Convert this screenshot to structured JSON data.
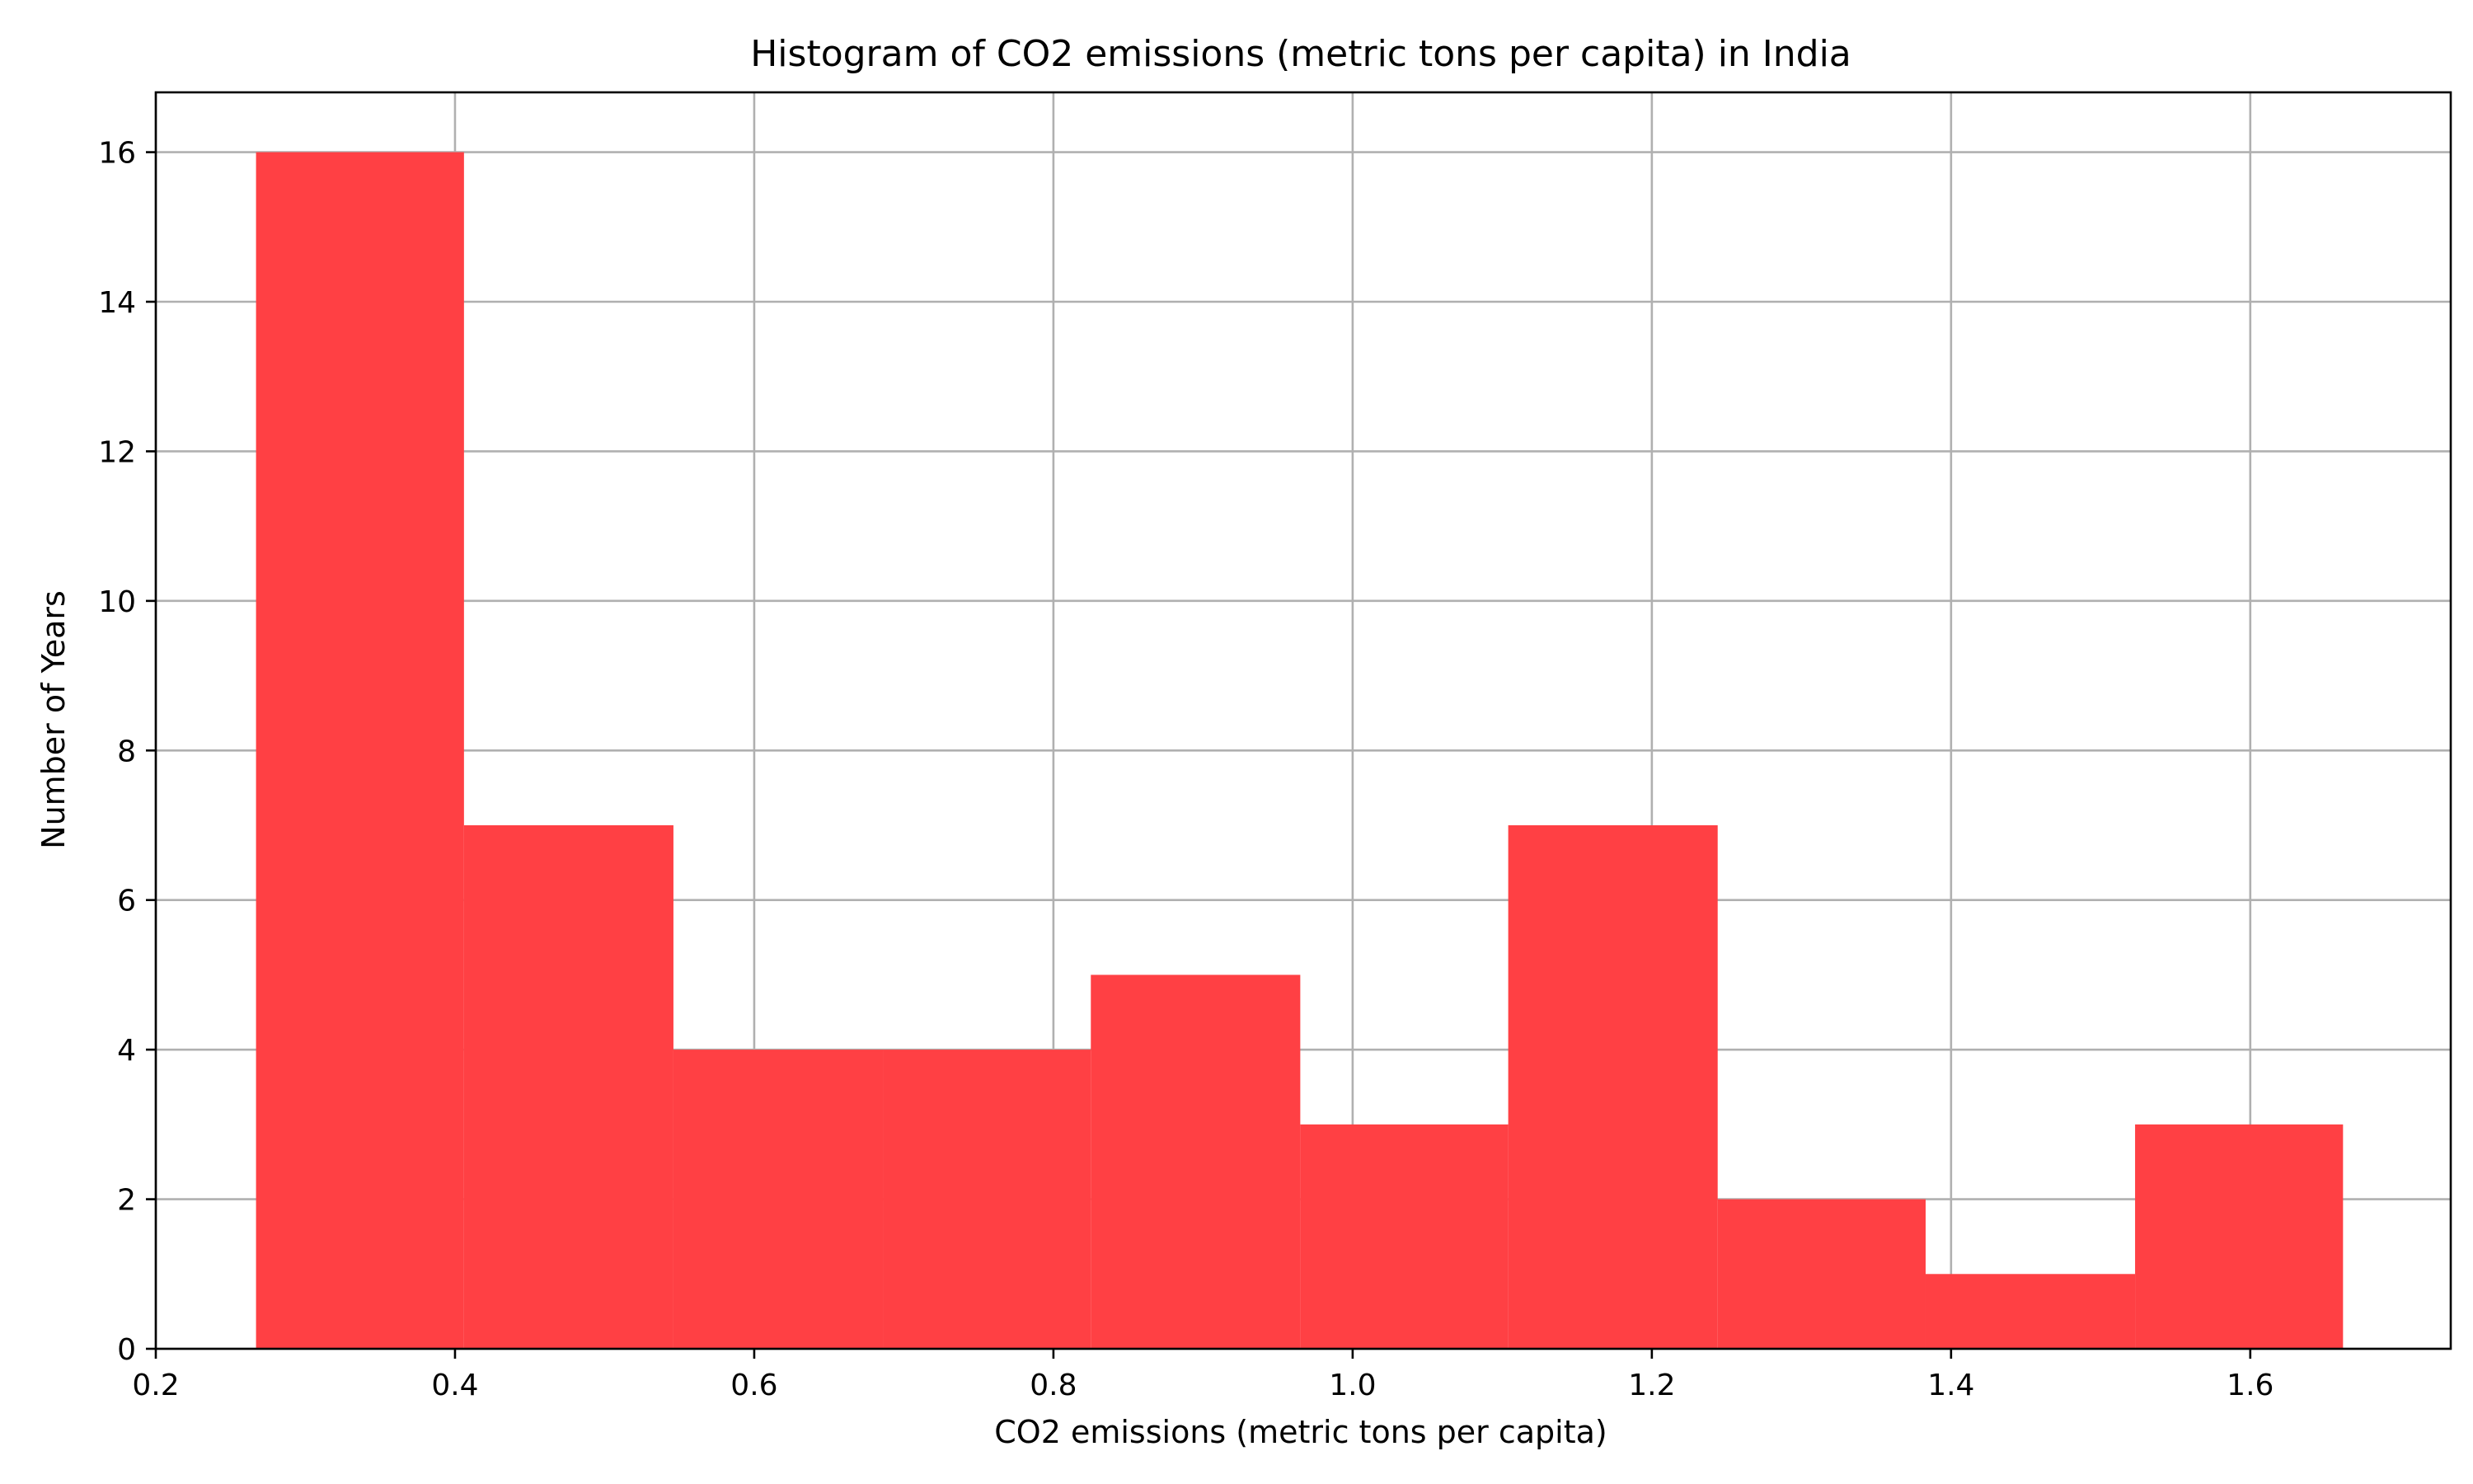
{
  "chart_data": {
    "type": "bar",
    "title": "Histogram of CO2 emissions (metric tons per capita) in India",
    "xlabel": "CO2 emissions (metric tons per capita)",
    "ylabel": "Number of Years",
    "xlim": [
      0.2,
      1.734
    ],
    "ylim": [
      0,
      16.8
    ],
    "xticks": [
      "0.2",
      "0.4",
      "0.6",
      "0.8",
      "1.0",
      "1.2",
      "1.4",
      "1.6"
    ],
    "yticks": [
      "0",
      "2",
      "4",
      "6",
      "8",
      "10",
      "12",
      "14",
      "16"
    ],
    "grid": true,
    "bar_color": "#ff4044",
    "bins": [
      {
        "x0": 0.267,
        "x1": 0.406,
        "count": 16
      },
      {
        "x0": 0.406,
        "x1": 0.546,
        "count": 7
      },
      {
        "x0": 0.546,
        "x1": 0.686,
        "count": 4
      },
      {
        "x0": 0.686,
        "x1": 0.825,
        "count": 4
      },
      {
        "x0": 0.825,
        "x1": 0.965,
        "count": 5
      },
      {
        "x0": 0.965,
        "x1": 1.104,
        "count": 3
      },
      {
        "x0": 1.104,
        "x1": 1.244,
        "count": 7
      },
      {
        "x0": 1.244,
        "x1": 1.383,
        "count": 2
      },
      {
        "x0": 1.383,
        "x1": 1.523,
        "count": 1
      },
      {
        "x0": 1.523,
        "x1": 1.662,
        "count": 3
      }
    ]
  }
}
